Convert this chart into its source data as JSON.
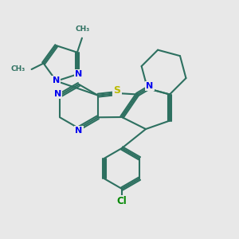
{
  "bg_color": "#e8e8e8",
  "bond_color": "#2d7060",
  "bond_width": 1.5,
  "atom_colors": {
    "N": "#0000ee",
    "S": "#bbbb00",
    "Cl": "#008800",
    "C": "#2d7060"
  },
  "fig_width": 3.0,
  "fig_height": 3.0,
  "dpi": 100,
  "xlim": [
    0,
    10
  ],
  "ylim": [
    0,
    10
  ]
}
